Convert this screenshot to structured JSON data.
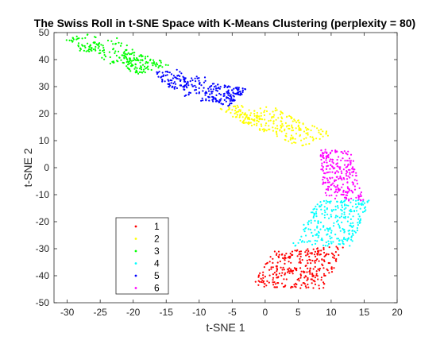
{
  "chart_data": {
    "type": "scatter",
    "title": "The Swiss Roll in t-SNE Space with K-Means Clustering (perplexity = 80)",
    "xlabel": "t-SNE 1",
    "ylabel": "t-SNE 2",
    "xlim": [
      -32,
      20
    ],
    "ylim": [
      -50,
      50
    ],
    "xticks": [
      -30,
      -25,
      -20,
      -15,
      -10,
      -5,
      0,
      5,
      10,
      15,
      20
    ],
    "yticks": [
      -50,
      -40,
      -30,
      -20,
      -10,
      0,
      10,
      20,
      30,
      40,
      50
    ],
    "grid": false,
    "legend": "bottom-left",
    "series": [
      {
        "name": "1",
        "color": "#ff0000",
        "count": 300,
        "region": {
          "kind": "quad",
          "corners": [
            [
              -2,
              -44
            ],
            [
              1,
              -31
            ],
            [
              12,
              -29
            ],
            [
              9,
              -45
            ]
          ]
        }
      },
      {
        "name": "2",
        "color": "#ffff00",
        "count": 260,
        "region": {
          "kind": "band",
          "path": [
            [
              -5,
              19
            ],
            [
              -2,
              21
            ],
            [
              1,
              17
            ],
            [
              4,
              14
            ],
            [
              8,
              10
            ]
          ],
          "halfwidth": 3.5
        }
      },
      {
        "name": "3",
        "color": "#00ff00",
        "count": 230,
        "region": {
          "kind": "band",
          "path": [
            [
              -29,
              45
            ],
            [
              -25,
              47
            ],
            [
              -22,
              41
            ],
            [
              -19,
              39
            ],
            [
              -17,
              36
            ]
          ],
          "halfwidth": 3
        }
      },
      {
        "name": "4",
        "color": "#00ffff",
        "count": 260,
        "region": {
          "kind": "quad",
          "corners": [
            [
              4,
              -29
            ],
            [
              8,
              -12
            ],
            [
              16,
              -12
            ],
            [
              13,
              -29
            ]
          ]
        }
      },
      {
        "name": "5",
        "color": "#0000ff",
        "count": 260,
        "region": {
          "kind": "band",
          "path": [
            [
              -16,
              32
            ],
            [
              -12,
              33
            ],
            [
              -9,
              28
            ],
            [
              -6,
              27
            ],
            [
              -4,
              26
            ]
          ],
          "halfwidth": 3.5
        }
      },
      {
        "name": "6",
        "color": "#ff00ff",
        "count": 240,
        "region": {
          "kind": "quad",
          "corners": [
            [
              9,
              -11
            ],
            [
              8,
              7
            ],
            [
              13,
              6
            ],
            [
              15,
              -13
            ]
          ]
        }
      }
    ]
  }
}
